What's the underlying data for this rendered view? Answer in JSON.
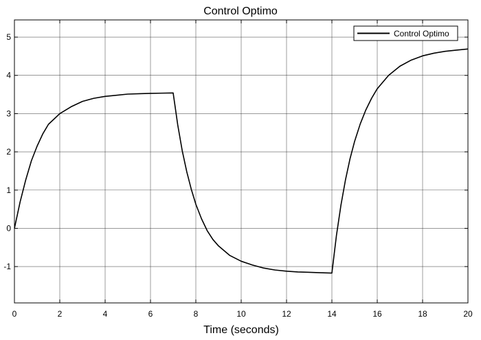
{
  "chart_data": {
    "type": "line",
    "title": "Control Optimo",
    "xlabel": "Time (seconds)",
    "ylabel": "",
    "xlim": [
      0,
      20
    ],
    "ylim": [
      -1.95,
      5.45
    ],
    "xticks": [
      0,
      2,
      4,
      6,
      8,
      10,
      12,
      14,
      16,
      18,
      20
    ],
    "yticks": [
      -1,
      0,
      1,
      2,
      3,
      4,
      5
    ],
    "grid": true,
    "legend": {
      "position": "top-right",
      "entries": [
        "Control Optimo"
      ]
    },
    "series": [
      {
        "name": "Control Optimo",
        "color": "#000000",
        "x": [
          0,
          0.25,
          0.5,
          0.75,
          1,
          1.25,
          1.5,
          2,
          2.5,
          3,
          3.5,
          4,
          4.5,
          5,
          5.5,
          6,
          6.5,
          7,
          7.2,
          7.4,
          7.6,
          7.8,
          8,
          8.25,
          8.5,
          8.75,
          9,
          9.5,
          10,
          10.5,
          11,
          11.5,
          12,
          12.5,
          13,
          13.5,
          14,
          14.2,
          14.4,
          14.6,
          14.8,
          15,
          15.25,
          15.5,
          15.75,
          16,
          16.5,
          17,
          17.5,
          18,
          18.5,
          19,
          19.5,
          20
        ],
        "y": [
          0,
          0.69,
          1.27,
          1.77,
          2.15,
          2.47,
          2.72,
          3.0,
          3.18,
          3.32,
          3.4,
          3.45,
          3.48,
          3.51,
          3.52,
          3.53,
          3.535,
          3.54,
          2.71,
          2.03,
          1.48,
          1.02,
          0.63,
          0.25,
          -0.06,
          -0.29,
          -0.46,
          -0.71,
          -0.86,
          -0.96,
          -1.04,
          -1.09,
          -1.12,
          -1.14,
          -1.15,
          -1.16,
          -1.17,
          -0.19,
          0.61,
          1.27,
          1.82,
          2.27,
          2.73,
          3.1,
          3.4,
          3.65,
          4.0,
          4.24,
          4.4,
          4.51,
          4.58,
          4.63,
          4.66,
          4.69
        ]
      }
    ]
  }
}
